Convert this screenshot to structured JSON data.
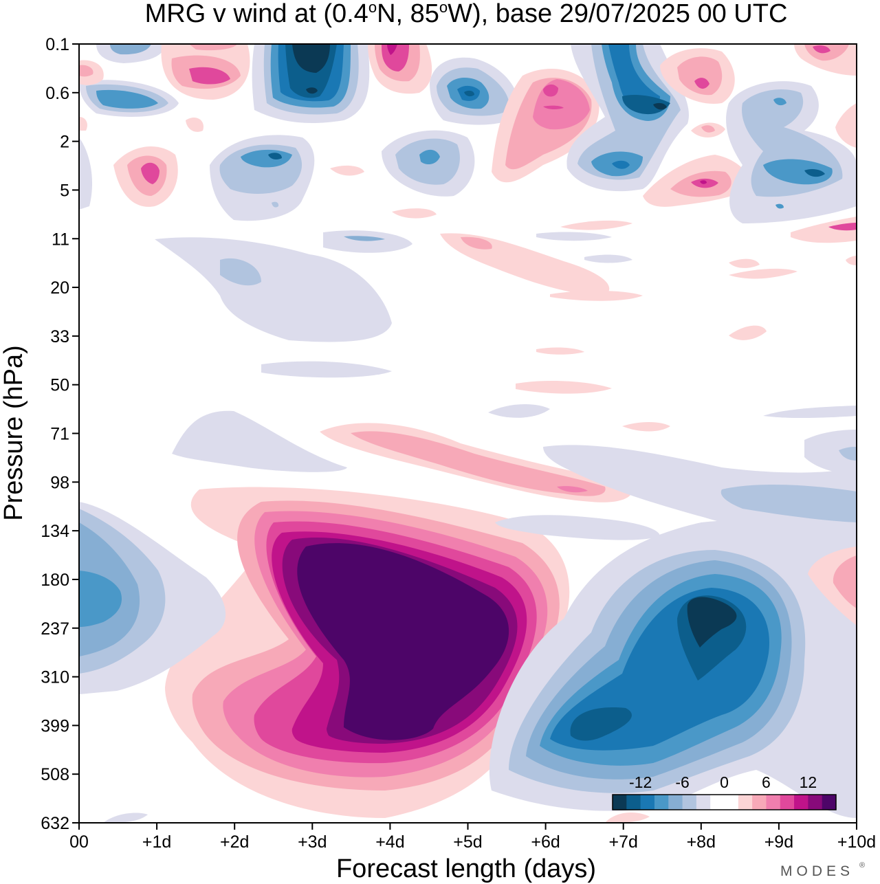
{
  "chart_data": {
    "type": "heatmap",
    "title": "MRG v wind at (0.4",
    "title_deg1": "o",
    "title_mid": "N, 85",
    "title_deg2": "o",
    "title_end": "W),  base 29/07/2025  00 UTC",
    "xlabel": "Forecast length (days)",
    "ylabel": "Pressure (hPa)",
    "x_ticks": [
      "00",
      "+1d",
      "+2d",
      "+3d",
      "+4d",
      "+5d",
      "+6d",
      "+7d",
      "+8d",
      "+9d",
      "+10d"
    ],
    "y_ticks": [
      "0.1",
      "0.6",
      "2",
      "5",
      "11",
      "20",
      "33",
      "50",
      "71",
      "98",
      "134",
      "180",
      "237",
      "310",
      "399",
      "508",
      "632"
    ],
    "xlim": [
      0,
      10
    ],
    "colorbar": {
      "labels": [
        "-12",
        "-6",
        "0",
        "6",
        "12"
      ],
      "colors": [
        "#0b3954",
        "#0c5e8c",
        "#1a78b4",
        "#4a98c8",
        "#86aed3",
        "#b1c4df",
        "#dcdcec",
        "#ffffff",
        "#ffffff",
        "#fcd5d6",
        "#f7a9b8",
        "#f07fae",
        "#e0489c",
        "#c0138a",
        "#880a7a",
        "#4d0568"
      ]
    },
    "features": [
      {
        "x": 3.9,
        "p": 237,
        "value": 15,
        "note": "strong positive lobe"
      },
      {
        "x": 8.1,
        "p": 237,
        "value": -14,
        "note": "strong negative lobe"
      },
      {
        "x": 6.7,
        "p": 399,
        "value": -11
      },
      {
        "x": 0.3,
        "p": 180,
        "value": -5
      },
      {
        "x": 3.0,
        "p": 0.1,
        "value": -14
      },
      {
        "x": 7.1,
        "p": 0.6,
        "value": -12
      }
    ]
  },
  "branding": "MODES",
  "branding_mark": "®"
}
